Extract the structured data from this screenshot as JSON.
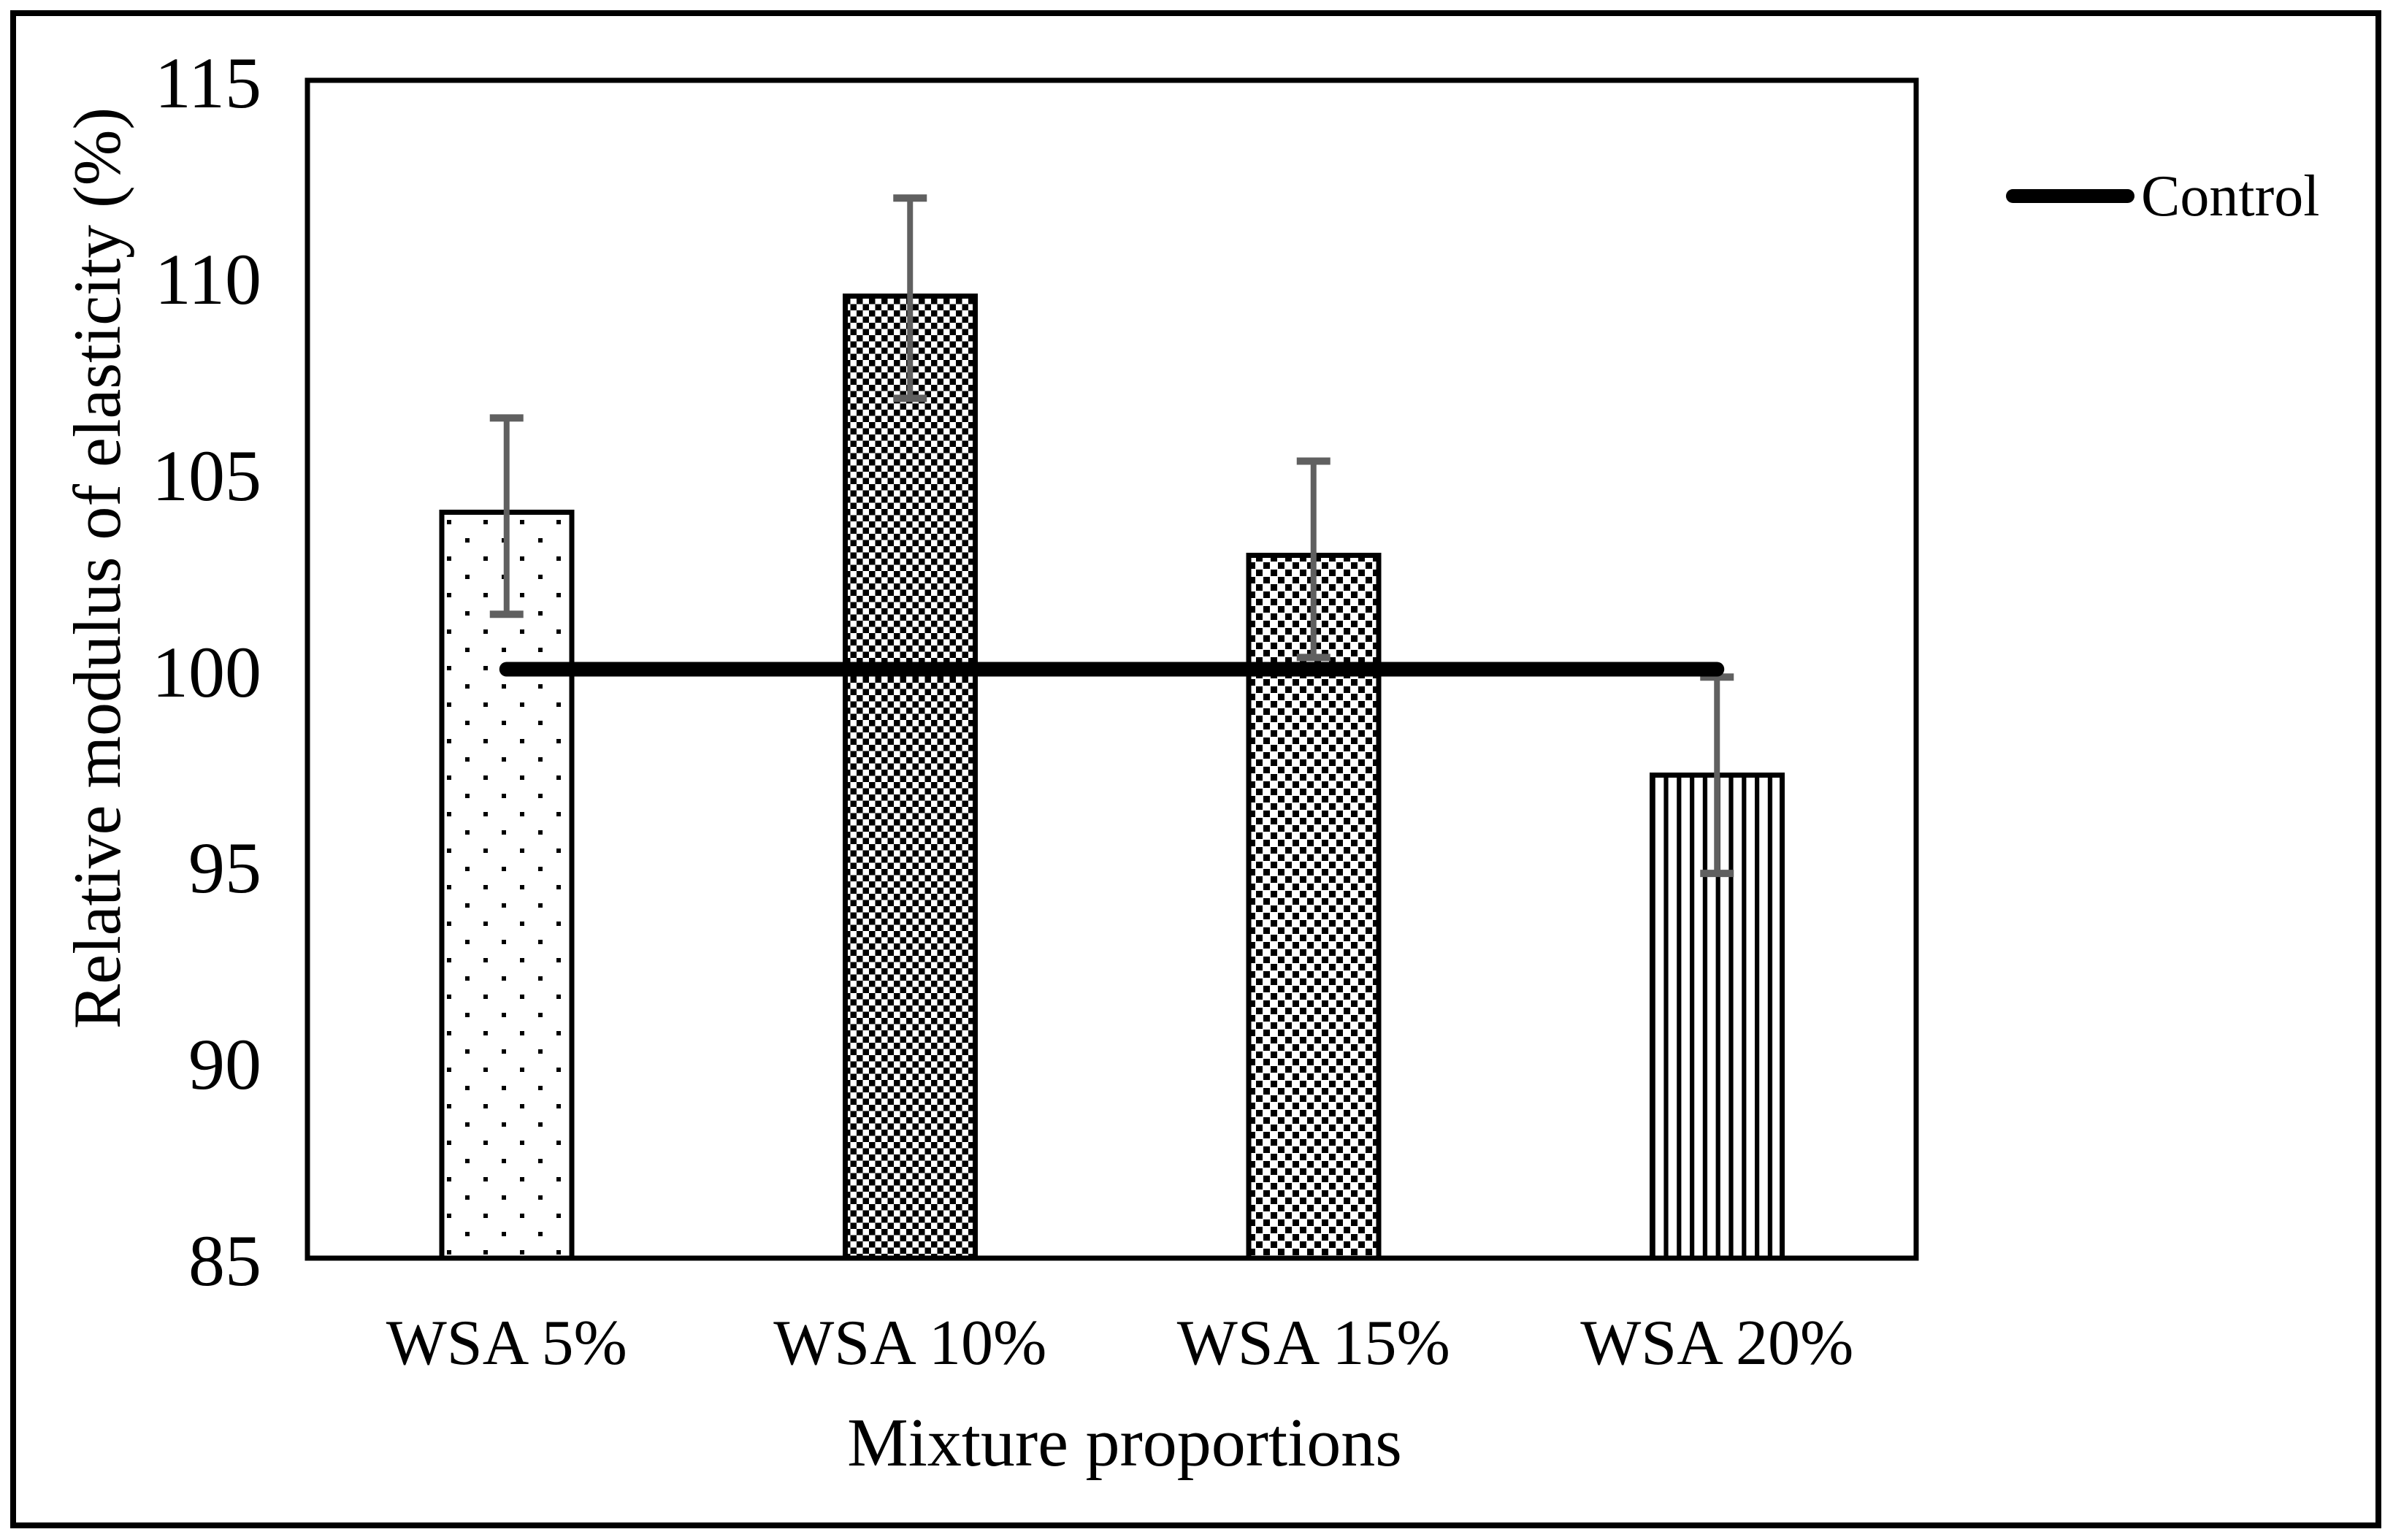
{
  "chart_data": {
    "type": "bar",
    "title": "",
    "categories": [
      "WSA 5%",
      "WSA 10%",
      "WSA 15%",
      "WSA 20%"
    ],
    "values": [
      104.0,
      109.5,
      102.9,
      97.3
    ],
    "error_bars": {
      "upper": [
        106.4,
        112.0,
        105.3,
        99.8
      ],
      "lower": [
        101.4,
        106.9,
        100.3,
        94.8
      ]
    },
    "control_line": {
      "label": "Control",
      "value": 100
    },
    "xlabel": "Mixture proportions",
    "ylabel": "Relative modulus of elasticity (%)",
    "ylim": [
      85,
      115
    ],
    "yticks": [
      85,
      90,
      95,
      100,
      105,
      110,
      115
    ],
    "grid": false,
    "legend_position": "top-right-outside",
    "bar_patterns": [
      "sparse-dots",
      "checkerboard",
      "downward-diagonal-dots",
      "vertical-stripes"
    ],
    "colors": {
      "bar_fill": "#ffffff",
      "bar_border": "#000000",
      "pattern_ink": "#000000",
      "error_bar": "#606060",
      "control_line": "#000000",
      "background": "#ffffff",
      "frame": "#000000"
    }
  }
}
